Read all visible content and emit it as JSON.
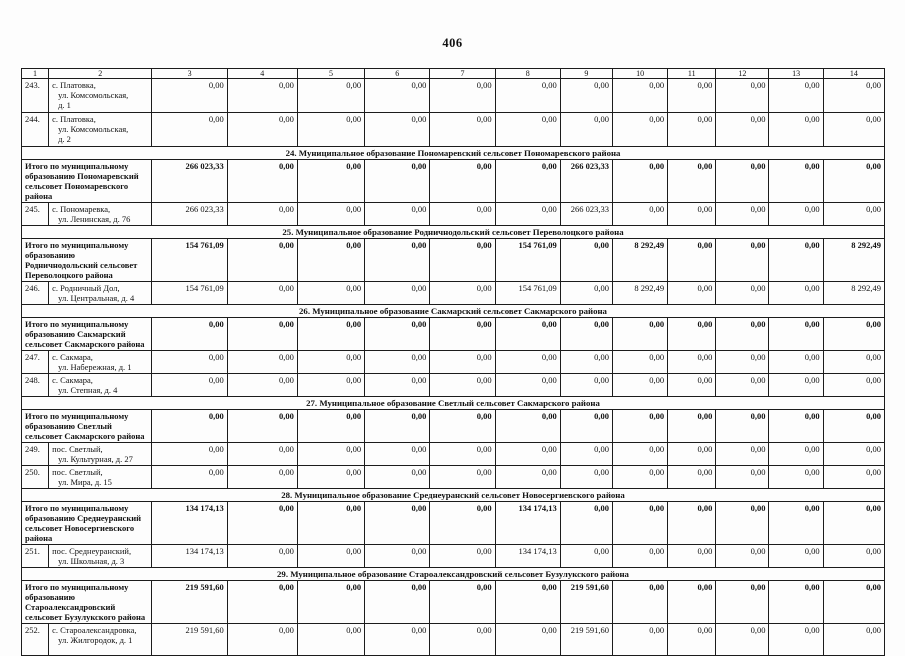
{
  "page_number": "406",
  "table": {
    "column_headers": [
      "1",
      "2",
      "3",
      "4",
      "5",
      "6",
      "7",
      "8",
      "9",
      "10",
      "11",
      "12",
      "13",
      "14"
    ],
    "rows": [
      {
        "type": "data",
        "tall": true,
        "num": "243.",
        "address": "с. Платовка,\nул. Комсомольская,\nд. 1",
        "values": [
          "0,00",
          "0,00",
          "0,00",
          "0,00",
          "0,00",
          "0,00",
          "0,00",
          "0,00",
          "0,00",
          "0,00",
          "0,00",
          "0,00"
        ]
      },
      {
        "type": "data",
        "tall": true,
        "num": "244.",
        "address": "с. Платовка,\nул. Комсомольская,\nд. 2",
        "values": [
          "0,00",
          "0,00",
          "0,00",
          "0,00",
          "0,00",
          "0,00",
          "0,00",
          "0,00",
          "0,00",
          "0,00",
          "0,00",
          "0,00"
        ]
      },
      {
        "type": "section",
        "label": "24. Муниципальное образование Пономаревский сельсовет Пономаревского района"
      },
      {
        "type": "total",
        "label": "Итого по муниципальному образованию Пономаревский сельсовет Пономаревского района",
        "values": [
          "266 023,33",
          "0,00",
          "0,00",
          "0,00",
          "0,00",
          "0,00",
          "266 023,33",
          "0,00",
          "0,00",
          "0,00",
          "0,00",
          "0,00"
        ]
      },
      {
        "type": "data",
        "num": "245.",
        "address": "с. Пономаревка,\nул. Ленинская, д. 76",
        "values": [
          "266 023,33",
          "0,00",
          "0,00",
          "0,00",
          "0,00",
          "0,00",
          "266 023,33",
          "0,00",
          "0,00",
          "0,00",
          "0,00",
          "0,00"
        ]
      },
      {
        "type": "section",
        "label": "25. Муниципальное образование Родничнодольский сельсовет Переволоцкого района"
      },
      {
        "type": "total",
        "label": "Итого по муниципальному образованию Родничнодольский сельсовет Переволоцкого района",
        "values": [
          "154 761,09",
          "0,00",
          "0,00",
          "0,00",
          "0,00",
          "154 761,09",
          "0,00",
          "8 292,49",
          "0,00",
          "0,00",
          "0,00",
          "8 292,49"
        ]
      },
      {
        "type": "data",
        "num": "246.",
        "address": "с. Родничный Дол,\nул. Центральная, д. 4",
        "values": [
          "154 761,09",
          "0,00",
          "0,00",
          "0,00",
          "0,00",
          "154 761,09",
          "0,00",
          "8 292,49",
          "0,00",
          "0,00",
          "0,00",
          "8 292,49"
        ]
      },
      {
        "type": "section",
        "label": "26. Муниципальное образование Сакмарский сельсовет Сакмарского района"
      },
      {
        "type": "total",
        "short": true,
        "label": "Итого по муниципальному образованию Сакмарский сельсовет Сакмарского района",
        "values": [
          "0,00",
          "0,00",
          "0,00",
          "0,00",
          "0,00",
          "0,00",
          "0,00",
          "0,00",
          "0,00",
          "0,00",
          "0,00",
          "0,00"
        ]
      },
      {
        "type": "data",
        "num": "247.",
        "address": "с. Сакмара,\nул. Набережная, д. 1",
        "values": [
          "0,00",
          "0,00",
          "0,00",
          "0,00",
          "0,00",
          "0,00",
          "0,00",
          "0,00",
          "0,00",
          "0,00",
          "0,00",
          "0,00"
        ]
      },
      {
        "type": "data",
        "num": "248.",
        "address": "с. Сакмара,\nул. Степная, д. 4",
        "values": [
          "0,00",
          "0,00",
          "0,00",
          "0,00",
          "0,00",
          "0,00",
          "0,00",
          "0,00",
          "0,00",
          "0,00",
          "0,00",
          "0,00"
        ]
      },
      {
        "type": "section",
        "label": "27. Муниципальное образование Светлый сельсовет Сакмарского района"
      },
      {
        "type": "total",
        "short": true,
        "label": "Итого по муниципальному образованию Светлый сельсовет Сакмарского района",
        "values": [
          "0,00",
          "0,00",
          "0,00",
          "0,00",
          "0,00",
          "0,00",
          "0,00",
          "0,00",
          "0,00",
          "0,00",
          "0,00",
          "0,00"
        ]
      },
      {
        "type": "data",
        "num": "249.",
        "address": "пос. Светлый,\nул. Культурная, д. 27",
        "values": [
          "0,00",
          "0,00",
          "0,00",
          "0,00",
          "0,00",
          "0,00",
          "0,00",
          "0,00",
          "0,00",
          "0,00",
          "0,00",
          "0,00"
        ]
      },
      {
        "type": "data",
        "num": "250.",
        "address": "пос. Светлый,\nул. Мира, д. 15",
        "values": [
          "0,00",
          "0,00",
          "0,00",
          "0,00",
          "0,00",
          "0,00",
          "0,00",
          "0,00",
          "0,00",
          "0,00",
          "0,00",
          "0,00"
        ]
      },
      {
        "type": "section",
        "label": "28. Муниципальное образование Среднеуранский сельсовет Новосергиевского района"
      },
      {
        "type": "total",
        "label": "Итого по муниципальному образованию Среднеуранский сельсовет Новосергиевского района",
        "values": [
          "134 174,13",
          "0,00",
          "0,00",
          "0,00",
          "0,00",
          "134 174,13",
          "0,00",
          "0,00",
          "0,00",
          "0,00",
          "0,00",
          "0,00"
        ]
      },
      {
        "type": "data",
        "num": "251.",
        "address": "пос. Среднеуранский,\nул. Школьная, д. 3",
        "values": [
          "134 174,13",
          "0,00",
          "0,00",
          "0,00",
          "0,00",
          "134 174,13",
          "0,00",
          "0,00",
          "0,00",
          "0,00",
          "0,00",
          "0,00"
        ]
      },
      {
        "type": "section",
        "label": "29. Муниципальное образование Староалександровский сельсовет Бузулукского района"
      },
      {
        "type": "total",
        "label": "Итого по муниципальному образованию Староалександровский сельсовет Бузулукского района",
        "values": [
          "219 591,60",
          "0,00",
          "0,00",
          "0,00",
          "0,00",
          "0,00",
          "219 591,60",
          "0,00",
          "0,00",
          "0,00",
          "0,00",
          "0,00"
        ]
      },
      {
        "type": "data",
        "num": "252.",
        "address": "с. Староалександровка,\nул. Жилгородок, д. 1",
        "values": [
          "219 591,60",
          "0,00",
          "0,00",
          "0,00",
          "0,00",
          "0,00",
          "219 591,60",
          "0,00",
          "0,00",
          "0,00",
          "0,00",
          "0,00"
        ]
      }
    ]
  }
}
